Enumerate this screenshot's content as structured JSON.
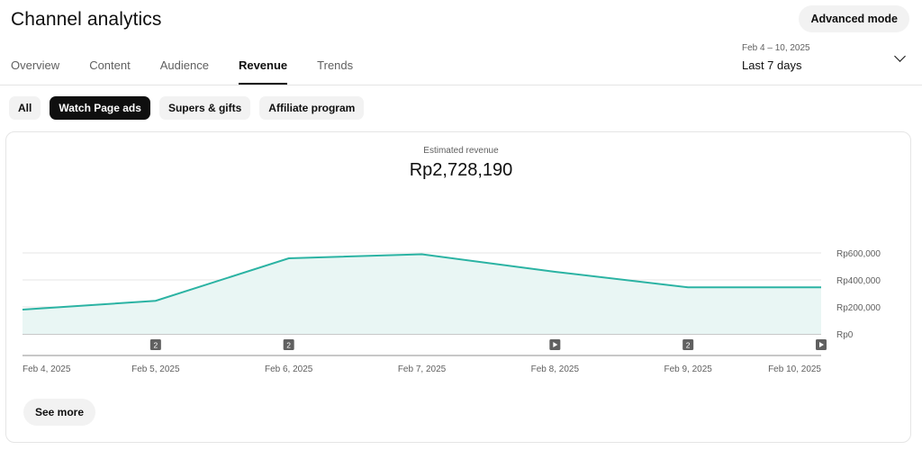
{
  "header": {
    "title": "Channel analytics",
    "advanced_mode_label": "Advanced mode"
  },
  "tabs": [
    {
      "label": "Overview",
      "active": false
    },
    {
      "label": "Content",
      "active": false
    },
    {
      "label": "Audience",
      "active": false
    },
    {
      "label": "Revenue",
      "active": true
    },
    {
      "label": "Trends",
      "active": false
    }
  ],
  "date_picker": {
    "range": "Feb 4 – 10, 2025",
    "label": "Last 7 days",
    "icon": "chevron-down-icon"
  },
  "filters": [
    {
      "label": "All",
      "active": false
    },
    {
      "label": "Watch Page ads",
      "active": true
    },
    {
      "label": "Supers & gifts",
      "active": false
    },
    {
      "label": "Affiliate program",
      "active": false
    }
  ],
  "metric": {
    "label": "Estimated revenue",
    "value": "Rp2,728,190"
  },
  "chart_data": {
    "type": "area",
    "x": [
      "Feb 4, 2025",
      "Feb 5, 2025",
      "Feb 6, 2025",
      "Feb 7, 2025",
      "Feb 8, 2025",
      "Feb 9, 2025",
      "Feb 10, 2025"
    ],
    "series": [
      {
        "values": [
          180000,
          245000,
          560000,
          590000,
          460000,
          345000,
          345000
        ]
      }
    ],
    "y_ticks": [
      0,
      200000,
      400000,
      600000
    ],
    "y_tick_labels": [
      "Rp0",
      "Rp200,000",
      "Rp400,000",
      "Rp600,000"
    ],
    "ylim": [
      0,
      600000
    ],
    "grid": true,
    "markers": [
      {
        "x": "Feb 5, 2025",
        "label": "2",
        "icon": "count-badge"
      },
      {
        "x": "Feb 6, 2025",
        "label": "2",
        "icon": "count-badge"
      },
      {
        "x": "Feb 8, 2025",
        "icon": "play-icon"
      },
      {
        "x": "Feb 9, 2025",
        "label": "2",
        "icon": "count-badge"
      },
      {
        "x": "Feb 10, 2025",
        "icon": "play-icon"
      }
    ],
    "colors": {
      "line": "#2bb3a3",
      "fill": "#e9f6f4",
      "grid": "#e5e5e5",
      "axis": "#909090",
      "marker": "#606060"
    }
  },
  "see_more_label": "See more"
}
